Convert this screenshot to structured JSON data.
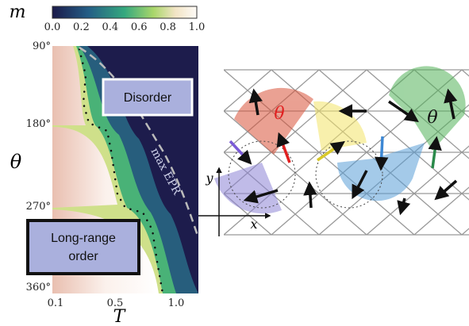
{
  "colorbar": {
    "label": "m",
    "ticks": [
      "0.0",
      "0.2",
      "0.4",
      "0.6",
      "0.8",
      "1.0"
    ]
  },
  "phase_diagram": {
    "y_label": "θ",
    "y_ticks": [
      "90°",
      "180°",
      "270°",
      "360°"
    ],
    "x_label": "T",
    "x_ticks": [
      "0.1",
      "0.5",
      "1.0"
    ],
    "annotations": {
      "disorder": "Disorder",
      "order_line1": "Long-range",
      "order_line2": "order",
      "epr": "max EPR"
    }
  },
  "lattice": {
    "angle_red": "θ",
    "angle_black": "θ",
    "x_axis": "x",
    "y_axis": "y"
  }
}
